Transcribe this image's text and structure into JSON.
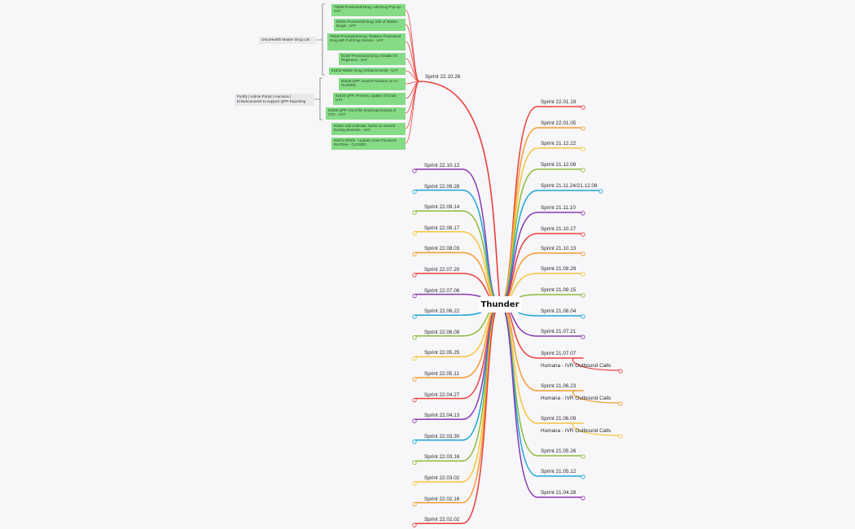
{
  "root": {
    "label": "Thunder"
  },
  "colors": {
    "red": "#e8403a",
    "orange": "#f59a2e",
    "yellow": "#f6c43c",
    "green": "#8bbc3a",
    "cyan": "#1ea5d6",
    "purple": "#8a3ab0",
    "box_green": "#86dc86"
  },
  "top_branch": {
    "label": "Sprint 22.10.26",
    "groups": [
      {
        "label": "OncoHealth Master Drug List"
      },
      {
        "label": "Fortify | Admin Portal | Humana | Enhancements to support QPP Reporting"
      }
    ],
    "items": [
      {
        "text": "79299 Provisional Drug: Add Drug Pop-up - UAT"
      },
      {
        "text": "81831 Provisional Drug: Edit of Master Drugs - UAT"
      },
      {
        "text": "78344 Provisional Drug: Replace Provisional Drug with Full Drug Version - UAT"
      },
      {
        "text": "81467 Provisional Drug: Disable for Regimens - UAT"
      },
      {
        "text": "81832 Master Drug: Enhancements - UAT"
      },
      {
        "text": "81518 QPP: Search Function on UI - CLOSED"
      },
      {
        "text": "81834 QPP: Preview, Update of Email - UAT"
      },
      {
        "text": "81836 QPP: Excel file download instead of CSV - UAT"
      },
      {
        "text": "82381 Add Unknown Option to several Dosing elements - UAT"
      },
      {
        "text": "82374 SPIKE - Update Azure Functions RunTime - CLOSED"
      }
    ]
  },
  "left_branches": [
    {
      "label": "Sprint 22.10.12",
      "color": "purple"
    },
    {
      "label": "Sprint 22.09.28",
      "color": "cyan"
    },
    {
      "label": "Sprint 22.09.14",
      "color": "green"
    },
    {
      "label": "Sprint 22.08.17",
      "color": "yellow"
    },
    {
      "label": "Sprint 22.08.03",
      "color": "orange"
    },
    {
      "label": "Sprint 22.07.20",
      "color": "red"
    },
    {
      "label": "Sprint 22.07.06",
      "color": "purple"
    },
    {
      "label": "Sprint 22.06.22",
      "color": "cyan"
    },
    {
      "label": "Sprint 22.06.08",
      "color": "green"
    },
    {
      "label": "Sprint 22.05.25",
      "color": "yellow"
    },
    {
      "label": "Sprint 22.05.11",
      "color": "orange"
    },
    {
      "label": "Sprint 22.04.27",
      "color": "red"
    },
    {
      "label": "Sprint 22.04.13",
      "color": "purple"
    },
    {
      "label": "Sprint 22.03.30",
      "color": "cyan"
    },
    {
      "label": "Sprint 22.03.16",
      "color": "green"
    },
    {
      "label": "Sprint 22.03.02",
      "color": "yellow"
    },
    {
      "label": "Sprint 22.02.16",
      "color": "orange"
    },
    {
      "label": "Sprint 22.02.02",
      "color": "red"
    }
  ],
  "right_branches": [
    {
      "label": "Sprint 22.01.19",
      "color": "red"
    },
    {
      "label": "Sprint 22.01.05",
      "color": "orange"
    },
    {
      "label": "Sprint 21.12.22",
      "color": "yellow"
    },
    {
      "label": "Sprint 21.12.08",
      "color": "green"
    },
    {
      "label": "Sprint 21.11.24/21.12.08",
      "color": "cyan"
    },
    {
      "label": "Sprint 21.11.10",
      "color": "purple"
    },
    {
      "label": "Sprint 21.10.27",
      "color": "red"
    },
    {
      "label": "Sprint 21.10.13",
      "color": "orange"
    },
    {
      "label": "Sprint 21.09.29",
      "color": "yellow"
    },
    {
      "label": "Sprint 21.09.15",
      "color": "green"
    },
    {
      "label": "Sprint 21.08.04",
      "color": "cyan"
    },
    {
      "label": "Sprint 21.07.21",
      "color": "purple"
    },
    {
      "label": "Sprint 21.07.07",
      "color": "red",
      "child": "Humana - IVR Outbound Calls"
    },
    {
      "label": "Sprint 21.06.23",
      "color": "orange",
      "child": "Humana - IVR Outbound Calls"
    },
    {
      "label": "Sprint 21.06.09",
      "color": "yellow",
      "child": "Humana - IVR Outbound Calls"
    },
    {
      "label": "Sprint 21.05.26",
      "color": "green"
    },
    {
      "label": "Sprint 21.05.12",
      "color": "cyan"
    },
    {
      "label": "Sprint 21.04.28",
      "color": "purple"
    }
  ]
}
